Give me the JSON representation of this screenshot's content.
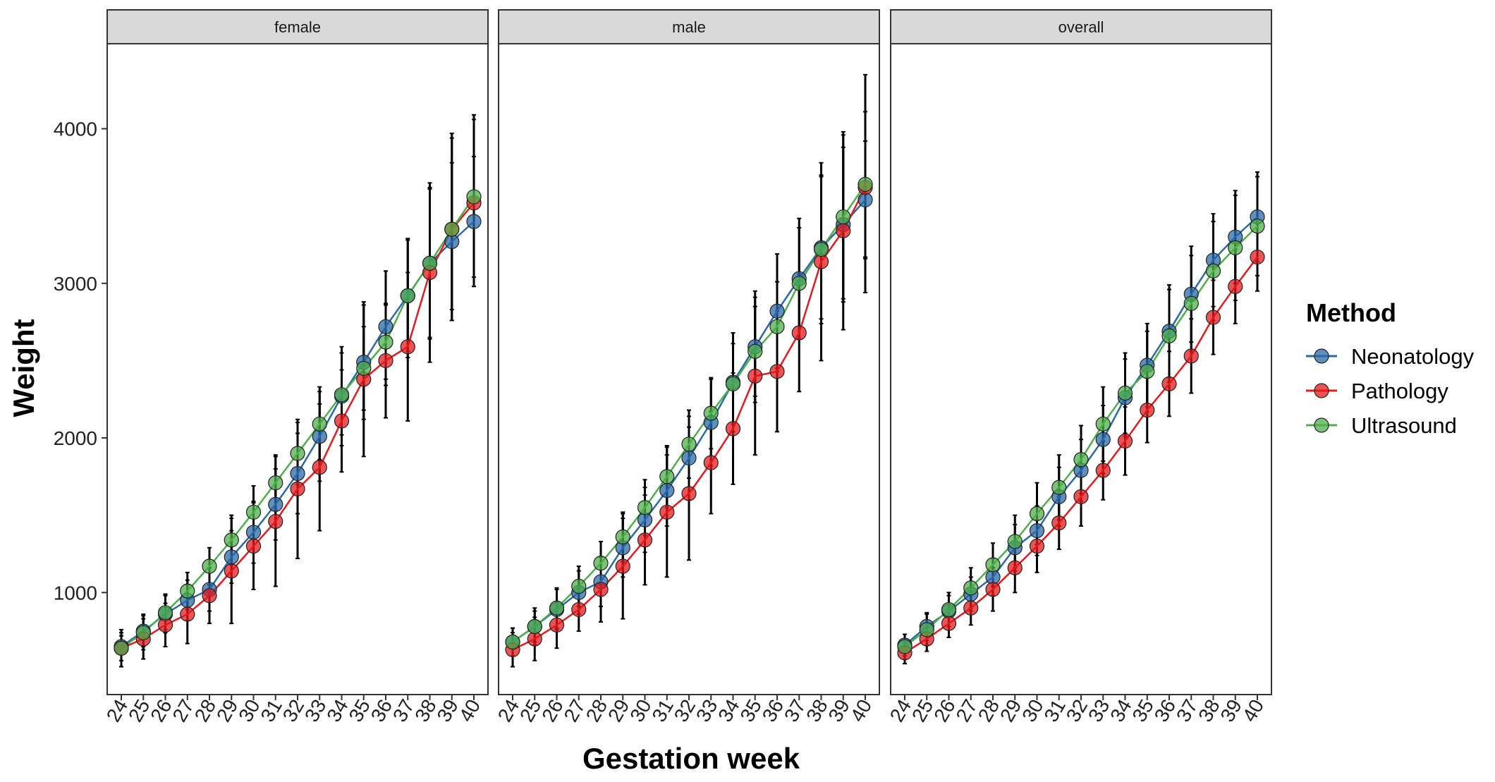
{
  "chart_data": {
    "type": "line",
    "xlabel": "Gestation week",
    "ylabel": "Weight",
    "x": [
      24,
      25,
      26,
      27,
      28,
      29,
      30,
      31,
      32,
      33,
      34,
      35,
      36,
      37,
      38,
      39,
      40
    ],
    "ylim": [
      340,
      4550
    ],
    "yticks": [
      1000,
      2000,
      3000,
      4000
    ],
    "grid": false,
    "legend": {
      "title": "Method",
      "position": "right",
      "items": [
        {
          "name": "Neonatology",
          "color": "#2A6AA8"
        },
        {
          "name": "Pathology",
          "color": "#E41A1C"
        },
        {
          "name": "Ultrasound",
          "color": "#4DAF4A"
        }
      ]
    },
    "panels": [
      {
        "label": "female",
        "series": [
          {
            "name": "Neonatology",
            "values": [
              650,
              750,
              860,
              950,
              1020,
              1230,
              1390,
              1570,
              1770,
              2010,
              2270,
              2490,
              2720,
              2920,
              3130,
              3270,
              3400
            ],
            "lower": [
              560,
              650,
              740,
              820,
              880,
              1060,
              1190,
              1340,
              1510,
              1720,
              1950,
              2120,
              2340,
              2520,
              2650,
              2760,
              2980
            ],
            "upper": [
              740,
              850,
              980,
              1080,
              1160,
              1400,
              1590,
              1800,
              2030,
              2300,
              2590,
              2860,
              3080,
              3290,
              3610,
              3780,
              3820
            ]
          },
          {
            "name": "Pathology",
            "values": [
              640,
              700,
              790,
              860,
              980,
              1140,
              1300,
              1460,
              1670,
              1810,
              2110,
              2380,
              2500,
              2590,
              3070,
              3350,
              3520
            ],
            "lower": [
              520,
              570,
              650,
              670,
              800,
              800,
              1020,
              1040,
              1220,
              1400,
              1780,
              1880,
              2130,
              2110,
              2490,
              2760,
              2980
            ],
            "upper": [
              760,
              830,
              930,
              1050,
              1160,
              1480,
              1580,
              1880,
              2120,
              2220,
              2440,
              2880,
              2870,
              3070,
              3650,
              3940,
              4060
            ]
          },
          {
            "name": "Ultrasound",
            "values": [
              640,
              740,
              870,
              1010,
              1170,
              1340,
              1520,
              1710,
              1900,
              2090,
              2280,
              2450,
              2620,
              2920,
              3130,
              3350,
              3560
            ],
            "lower": [
              560,
              630,
              760,
              890,
              1050,
              1180,
              1350,
              1530,
              1700,
              1860,
              2020,
              2180,
              2380,
              2560,
              2640,
              2830,
              3040
            ],
            "upper": [
              720,
              860,
              990,
              1130,
              1290,
              1500,
              1690,
              1890,
              2100,
              2330,
              2550,
              2720,
              2860,
              3280,
              3620,
              3970,
              4090
            ]
          }
        ]
      },
      {
        "label": "male",
        "series": [
          {
            "name": "Neonatology",
            "values": [
              680,
              780,
              890,
              1000,
              1070,
              1290,
              1470,
              1660,
              1870,
              2100,
              2360,
              2590,
              2820,
              3030,
              3230,
              3380,
              3540
            ],
            "lower": [
              590,
              680,
              760,
              860,
              910,
              1100,
              1260,
              1430,
              1600,
              1820,
              2040,
              2230,
              2450,
              2640,
              2770,
              2880,
              3160
            ],
            "upper": [
              770,
              880,
              1020,
              1140,
              1230,
              1480,
              1680,
              1890,
              2140,
              2380,
              2680,
              2950,
              3190,
              3420,
              3690,
              3880,
              3920
            ]
          },
          {
            "name": "Pathology",
            "values": [
              630,
              700,
              790,
              890,
              1020,
              1170,
              1340,
              1520,
              1640,
              1840,
              2060,
              2400,
              2430,
              2680,
              3140,
              3340,
              3620
            ],
            "lower": [
              520,
              560,
              640,
              750,
              810,
              830,
              1050,
              1100,
              1210,
              1510,
              1700,
              1890,
              2040,
              2300,
              2500,
              2700,
              2940
            ],
            "upper": [
              740,
              840,
              940,
              1030,
              1230,
              1510,
              1630,
              1940,
              2070,
              2170,
              2420,
              2910,
              2820,
              3060,
              3780,
              3980,
              4350
            ]
          },
          {
            "name": "Ultrasound",
            "values": [
              680,
              780,
              900,
              1040,
              1190,
              1360,
              1550,
              1750,
              1960,
              2160,
              2350,
              2560,
              2720,
              3000,
              3220,
              3430,
              3640
            ],
            "lower": [
              590,
              660,
              770,
              910,
              1050,
              1200,
              1370,
              1550,
              1740,
              1930,
              2090,
              2270,
              2430,
              2640,
              2740,
              2900,
              3170
            ],
            "upper": [
              770,
              900,
              1030,
              1170,
              1330,
              1520,
              1730,
              1950,
              2180,
              2390,
              2610,
              2850,
              3010,
              3360,
              3700,
              3960,
              4110
            ]
          }
        ]
      },
      {
        "label": "overall",
        "series": [
          {
            "name": "Neonatology",
            "values": [
              660,
              780,
              880,
              990,
              1100,
              1290,
              1400,
              1620,
              1790,
              1990,
              2260,
              2470,
              2690,
              2930,
              3150,
              3300,
              3430
            ],
            "lower": [
              590,
              690,
              780,
              880,
              980,
              1140,
              1240,
              1430,
              1590,
              1770,
              2010,
              2200,
              2390,
              2620,
              2850,
              3000,
              3140
            ],
            "upper": [
              730,
              870,
              980,
              1100,
              1220,
              1440,
              1560,
              1810,
              1990,
              2210,
              2510,
              2740,
              2990,
              3240,
              3450,
              3600,
              3720
            ]
          },
          {
            "name": "Pathology",
            "values": [
              610,
              700,
              800,
              900,
              1020,
              1160,
              1300,
              1450,
              1620,
              1790,
              1980,
              2180,
              2350,
              2530,
              2780,
              2980,
              3170
            ],
            "lower": [
              540,
              620,
              710,
              790,
              880,
              1000,
              1130,
              1280,
              1430,
              1600,
              1760,
              1970,
              2140,
              2290,
              2540,
              2740,
              2950
            ],
            "upper": [
              680,
              780,
              890,
              1010,
              1160,
              1320,
              1470,
              1620,
              1810,
              1980,
              2200,
              2390,
              2560,
              2770,
              3020,
              3220,
              3390
            ]
          },
          {
            "name": "Ultrasound",
            "values": [
              650,
              760,
              890,
              1030,
              1180,
              1330,
              1510,
              1680,
              1860,
              2090,
              2290,
              2430,
              2660,
              2870,
              3080,
              3230,
              3370
            ],
            "lower": [
              570,
              660,
              780,
              900,
              1040,
              1160,
              1310,
              1470,
              1640,
              1850,
              2030,
              2170,
              2360,
              2560,
              2760,
              2890,
              3050
            ],
            "upper": [
              730,
              860,
              1000,
              1160,
              1320,
              1500,
              1710,
              1890,
              2080,
              2330,
              2550,
              2690,
              2960,
              3180,
              3400,
              3570,
              3690
            ]
          }
        ]
      }
    ]
  }
}
